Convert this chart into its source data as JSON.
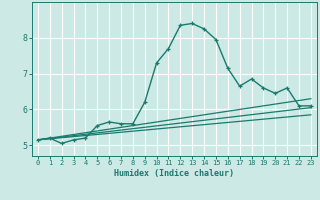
{
  "title": "",
  "xlabel": "Humidex (Indice chaleur)",
  "ylabel": "",
  "background_color": "#cce9e5",
  "grid_color": "#ffffff",
  "line_color": "#1a7a6e",
  "xlim": [
    -0.5,
    23.5
  ],
  "ylim": [
    4.7,
    9.0
  ],
  "xticks": [
    0,
    1,
    2,
    3,
    4,
    5,
    6,
    7,
    8,
    9,
    10,
    11,
    12,
    13,
    14,
    15,
    16,
    17,
    18,
    19,
    20,
    21,
    22,
    23
  ],
  "yticks": [
    5,
    6,
    7,
    8
  ],
  "line1_x": [
    0,
    1,
    2,
    3,
    4,
    5,
    6,
    7,
    8,
    9,
    10,
    11,
    12,
    13,
    14,
    15,
    16,
    17,
    18,
    19,
    20,
    21,
    22,
    23
  ],
  "line1_y": [
    5.15,
    5.2,
    5.05,
    5.15,
    5.2,
    5.55,
    5.65,
    5.6,
    5.6,
    6.2,
    7.3,
    7.7,
    8.35,
    8.4,
    8.25,
    7.95,
    7.15,
    6.65,
    6.85,
    6.6,
    6.45,
    6.6,
    6.1,
    6.1
  ],
  "line2_x": [
    0,
    23
  ],
  "line2_y": [
    5.15,
    6.3
  ],
  "line3_x": [
    0,
    23
  ],
  "line3_y": [
    5.15,
    6.05
  ],
  "line4_x": [
    0,
    23
  ],
  "line4_y": [
    5.15,
    5.85
  ],
  "xlabel_fontsize": 6,
  "tick_fontsize": 5,
  "ytick_fontsize": 6
}
